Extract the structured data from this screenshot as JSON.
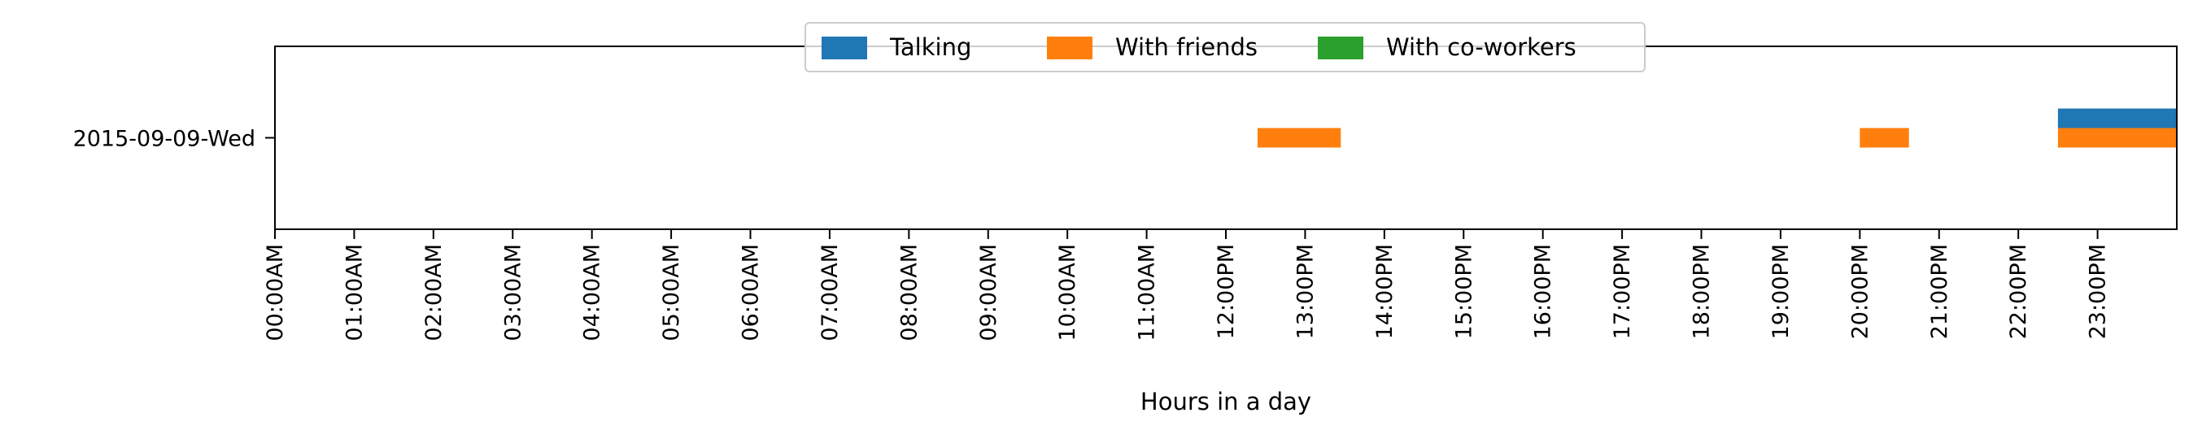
{
  "chart_data": {
    "type": "timeline",
    "xlabel": "Hours in a day",
    "ylabel": "",
    "xlim": [
      0,
      24
    ],
    "x_tick_labels": [
      "00:00AM",
      "01:00AM",
      "02:00AM",
      "03:00AM",
      "04:00AM",
      "05:00AM",
      "06:00AM",
      "07:00AM",
      "08:00AM",
      "09:00AM",
      "10:00AM",
      "11:00AM",
      "12:00PM",
      "13:00PM",
      "14:00PM",
      "15:00PM",
      "16:00PM",
      "17:00PM",
      "18:00PM",
      "19:00PM",
      "20:00PM",
      "21:00PM",
      "22:00PM",
      "23:00PM"
    ],
    "categories": [
      "2015-09-09-Wed"
    ],
    "legend_position": "top-center",
    "series": [
      {
        "name": "Talking",
        "color": "#1f77b4",
        "intervals": [
          {
            "day": "2015-09-09-Wed",
            "start": 22.5,
            "end": 24.0
          }
        ]
      },
      {
        "name": "With friends",
        "color": "#ff7f0e",
        "intervals": [
          {
            "day": "2015-09-09-Wed",
            "start": 12.4,
            "end": 13.45
          },
          {
            "day": "2015-09-09-Wed",
            "start": 20.0,
            "end": 20.62
          },
          {
            "day": "2015-09-09-Wed",
            "start": 22.5,
            "end": 24.0
          }
        ]
      },
      {
        "name": "With co-workers",
        "color": "#2ca02c",
        "intervals": []
      }
    ]
  }
}
